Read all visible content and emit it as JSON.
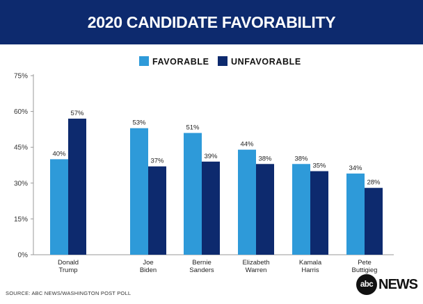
{
  "header": {
    "title": "2020 CANDIDATE FAVORABILITY"
  },
  "footer": {
    "source": "SOURCE: ABC NEWS/WASHINGTON POST POLL",
    "logo_circle": "abc",
    "logo_text": "NEWS"
  },
  "colors": {
    "header_bg": "#0d2a6e",
    "favorable": "#2e9ad9",
    "unfavorable": "#0d2a6e"
  },
  "chart_data": {
    "type": "bar",
    "title": "2020 CANDIDATE FAVORABILITY",
    "categories": [
      [
        "Donald",
        "Trump"
      ],
      [
        "Joe",
        "Biden"
      ],
      [
        "Bernie",
        "Sanders"
      ],
      [
        "Elizabeth",
        "Warren"
      ],
      [
        "Kamala",
        "Harris"
      ],
      [
        "Pete",
        "Buttigieg"
      ]
    ],
    "series": [
      {
        "name": "FAVORABLE",
        "color": "#2e9ad9",
        "values": [
          40,
          53,
          51,
          44,
          38,
          34
        ]
      },
      {
        "name": "UNFAVORABLE",
        "color": "#0d2a6e",
        "values": [
          57,
          37,
          39,
          38,
          35,
          28
        ]
      }
    ],
    "ylim": [
      0,
      75
    ],
    "yticks": [
      0,
      15,
      30,
      45,
      60,
      75
    ],
    "ytick_labels": [
      "0%",
      "15%",
      "30%",
      "45%",
      "60%",
      "75%"
    ],
    "value_suffix": "%",
    "legend_position": "top-center",
    "grid": false
  }
}
